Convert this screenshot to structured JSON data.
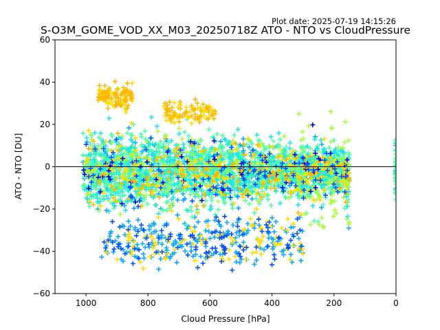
{
  "chart_data": {
    "type": "scatter",
    "plot_date": "Plot date: 2025-07-19 14:15:26",
    "title": "S-O3M_GOME_VOD_XX_M03_20250718Z ATO - NTO vs CloudPressure",
    "xlabel": "Cloud Pressure [hPa]",
    "ylabel": "ATO - NTO [DU]",
    "xlim": [
      1100,
      0
    ],
    "ylim": [
      -60,
      60
    ],
    "xticks": [
      1000,
      800,
      600,
      400,
      200,
      0
    ],
    "yticks": [
      -60,
      -40,
      -20,
      0,
      20,
      40,
      60
    ],
    "xtick_labels": [
      "1000",
      "800",
      "600",
      "400",
      "200",
      "0"
    ],
    "ytick_labels": [
      "−60",
      "−40",
      "−20",
      "0",
      "20",
      "40",
      "60"
    ],
    "reference_line_y": 0,
    "marker": "+",
    "grid": false,
    "colors": {
      "dominant": "#50ffa8",
      "cyan": "#1ee6e6",
      "sky": "#0aa8ff",
      "blue": "#0050ff",
      "navy": "#0000d8",
      "yellow_green": "#a8ff40",
      "yellow": "#ffdc00",
      "orange": "#ffb800"
    },
    "clusters": [
      {
        "name": "main",
        "x_range": [
          150,
          1010
        ],
        "y_center": -2,
        "spread": 12,
        "count": 3000
      },
      {
        "name": "upper-left",
        "x_range": [
          850,
          960
        ],
        "y_center": 33,
        "spread": 4,
        "count": 120
      },
      {
        "name": "upper-mid",
        "x_range": [
          580,
          750
        ],
        "y_center": 26,
        "spread": 4,
        "count": 100
      },
      {
        "name": "low-tail",
        "x_range": [
          300,
          950
        ],
        "y_center": -35,
        "spread": 8,
        "count": 400
      },
      {
        "name": "right-tail",
        "x_range": [
          150,
          320
        ],
        "y_center": -5,
        "spread": 15,
        "count": 200
      },
      {
        "name": "zero-pressure",
        "x_range": [
          0,
          2
        ],
        "y_center": 0,
        "spread": 10,
        "count": 40
      }
    ]
  }
}
